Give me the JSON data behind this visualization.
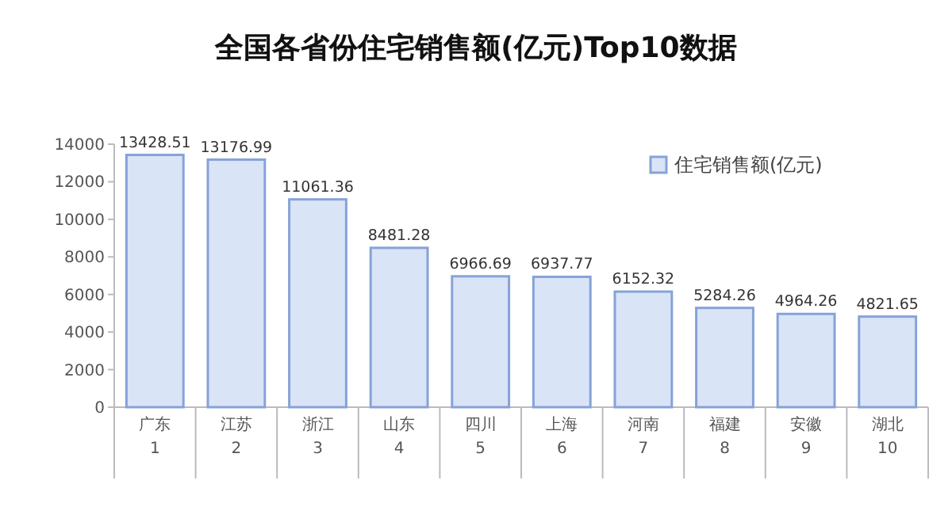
{
  "chart_data": {
    "type": "bar",
    "title": "全国各省份住宅销售额(亿元)Top10数据",
    "categories": [
      "广东\n1",
      "江苏\n2",
      "浙江\n3",
      "山东\n4",
      "四川\n5",
      "上海\n6",
      "河南\n7",
      "福建\n8",
      "安徽\n9",
      "湖北\n10"
    ],
    "series": [
      {
        "name": "住宅销售额(亿元)",
        "color": "#dae4f7",
        "values": [
          13428.51,
          13176.99,
          11061.36,
          8481.28,
          6966.69,
          6937.77,
          6152.32,
          5284.26,
          4964.26,
          4821.65
        ]
      }
    ],
    "ylim": [
      0,
      14000
    ],
    "yticks": [
      0,
      2000,
      4000,
      6000,
      8000,
      10000,
      12000,
      14000
    ],
    "data_labels": true,
    "legend": "top right",
    "grid": false
  }
}
